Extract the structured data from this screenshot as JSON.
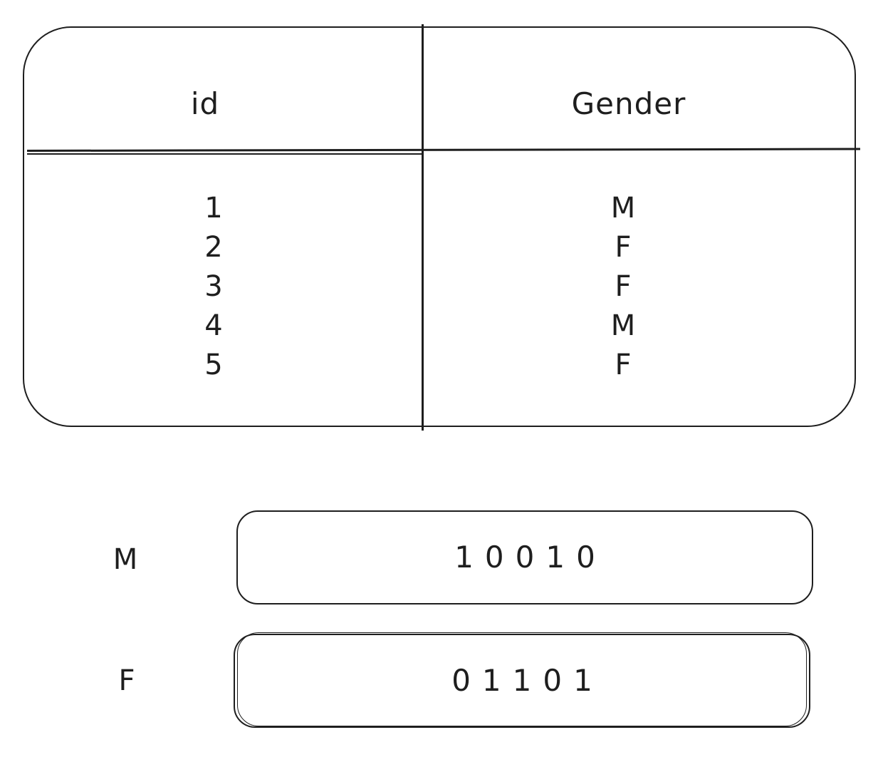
{
  "table": {
    "headers": {
      "id": "id",
      "gender": "Gender"
    },
    "rows": [
      {
        "id": "1",
        "gender": "M"
      },
      {
        "id": "2",
        "gender": "F"
      },
      {
        "id": "3",
        "gender": "F"
      },
      {
        "id": "4",
        "gender": "M"
      },
      {
        "id": "5",
        "gender": "F"
      }
    ]
  },
  "bitmaps": {
    "m": {
      "label": "M",
      "bits": "10010"
    },
    "f": {
      "label": "F",
      "bits": "01101"
    }
  }
}
